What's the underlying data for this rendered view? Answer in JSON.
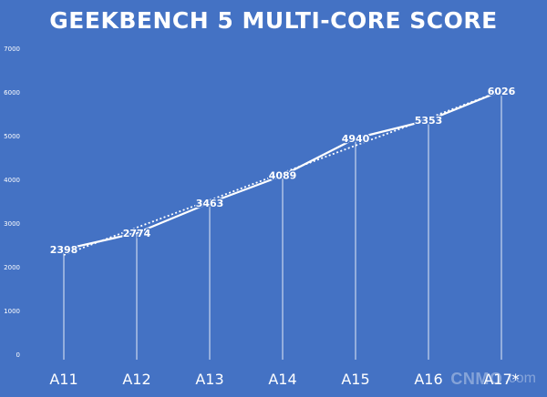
{
  "chart_data": {
    "type": "line",
    "title": "GEEKBENCH 5 MULTI-CORE SCORE",
    "categories": [
      "A11",
      "A12",
      "A13",
      "A14",
      "A15",
      "A16",
      "A17*"
    ],
    "series": [
      {
        "values": [
          2398,
          2774,
          3463,
          4089,
          4940,
          5353,
          6026
        ]
      }
    ],
    "yaxis_ticks": [
      0,
      1000,
      2000,
      3000,
      4000,
      5000,
      6000,
      7000
    ],
    "ylim": [
      0,
      7000
    ],
    "grid": false,
    "trendline": "linear",
    "colors": {
      "background": "#4472c4",
      "line": "#ffffff",
      "text": "#ffffff"
    }
  },
  "watermark": {
    "brand": "CNMO",
    "suffix": ".com"
  }
}
